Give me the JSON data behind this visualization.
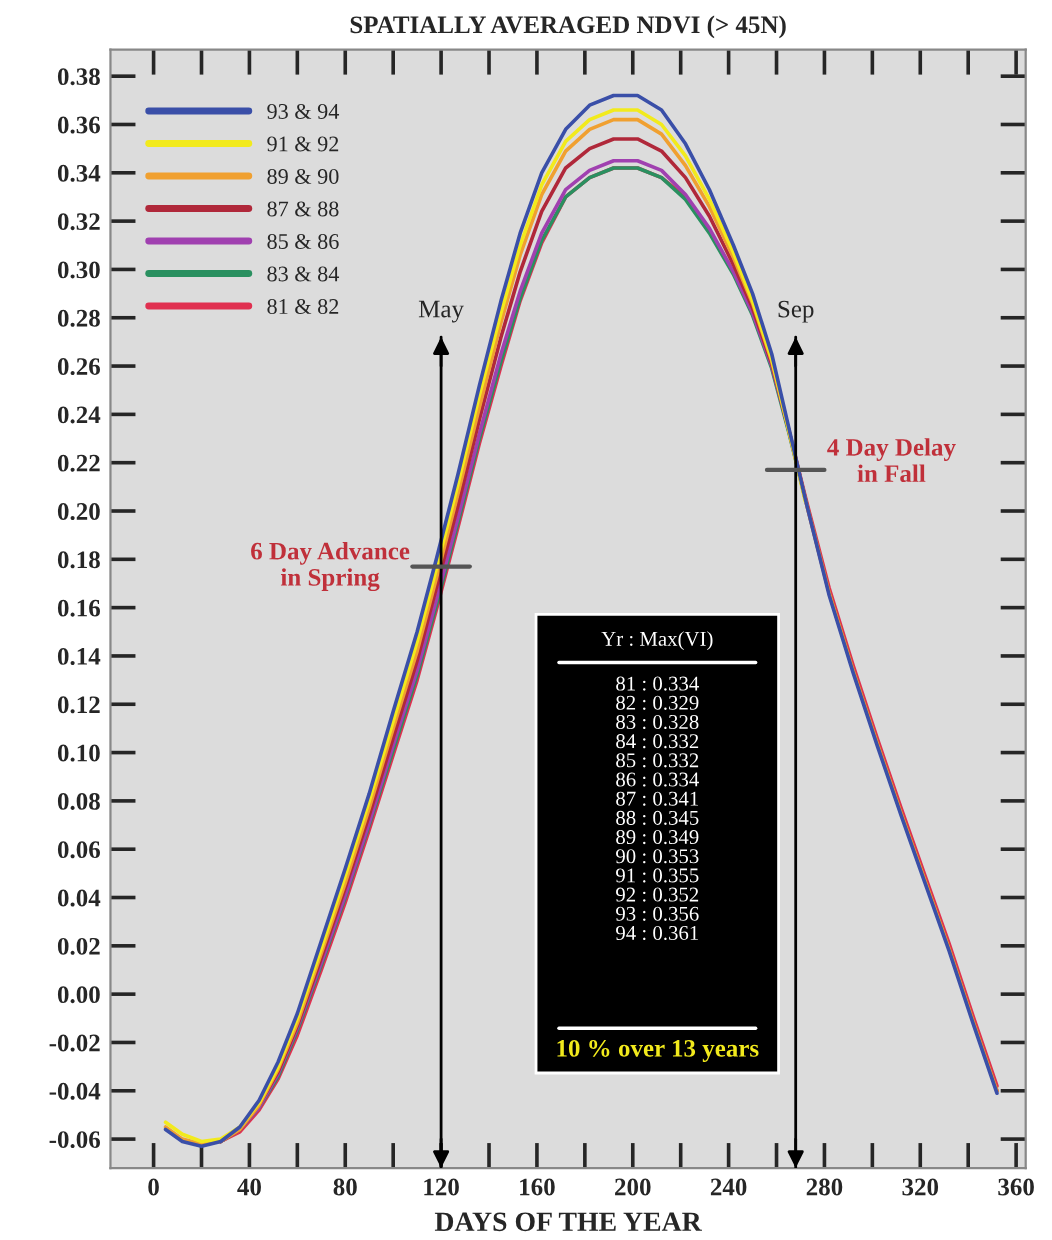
{
  "chart_data": {
    "type": "line",
    "title": "SPATIALLY AVERAGED NDVI (> 45N)",
    "xlabel": "DAYS OF THE YEAR",
    "x": [
      5,
      12,
      20,
      28,
      36,
      44,
      52,
      60,
      70,
      80,
      90,
      100,
      110,
      118,
      127,
      136,
      145,
      153,
      162,
      172,
      182,
      192,
      202,
      212,
      222,
      232,
      242,
      250,
      258,
      265,
      272,
      282,
      292,
      302,
      312,
      322,
      332,
      342,
      352
    ],
    "series": [
      {
        "name": "93 & 94",
        "color": "#3a4fa8",
        "values": [
          -0.056,
          -0.061,
          -0.063,
          -0.061,
          -0.055,
          -0.044,
          -0.028,
          -0.008,
          0.022,
          0.052,
          0.083,
          0.117,
          0.15,
          0.18,
          0.215,
          0.252,
          0.287,
          0.315,
          0.34,
          0.358,
          0.368,
          0.372,
          0.372,
          0.366,
          0.352,
          0.333,
          0.31,
          0.29,
          0.265,
          0.235,
          0.205,
          0.165,
          0.133,
          0.103,
          0.074,
          0.046,
          0.018,
          -0.012,
          -0.041
        ]
      },
      {
        "name": "91 & 92",
        "color": "#f2ea1c",
        "values": [
          -0.053,
          -0.058,
          -0.061,
          -0.06,
          -0.055,
          -0.045,
          -0.03,
          -0.01,
          0.019,
          0.049,
          0.08,
          0.113,
          0.146,
          0.176,
          0.211,
          0.248,
          0.282,
          0.31,
          0.335,
          0.353,
          0.362,
          0.366,
          0.366,
          0.36,
          0.347,
          0.329,
          0.307,
          0.287,
          0.263,
          0.234,
          0.204,
          null,
          null,
          null,
          null,
          null,
          null,
          null,
          null
        ]
      },
      {
        "name": "89 & 90",
        "color": "#f0a030",
        "values": [
          -0.055,
          -0.06,
          -0.062,
          -0.061,
          -0.056,
          -0.046,
          -0.031,
          -0.012,
          0.017,
          0.046,
          0.077,
          0.11,
          0.142,
          0.172,
          0.207,
          0.243,
          0.278,
          0.306,
          0.331,
          0.349,
          0.358,
          0.362,
          0.362,
          0.356,
          0.343,
          0.326,
          0.305,
          0.286,
          0.262,
          0.234,
          0.205,
          0.166,
          0.134,
          0.104,
          0.075,
          0.047,
          0.019,
          -0.011,
          -0.04
        ]
      },
      {
        "name": "87 & 88",
        "color": "#b0283a",
        "values": [
          null,
          null,
          null,
          -0.061,
          -0.056,
          -0.046,
          -0.032,
          -0.013,
          0.015,
          0.044,
          0.074,
          0.106,
          0.138,
          0.168,
          0.202,
          0.238,
          0.272,
          0.299,
          0.324,
          0.342,
          0.35,
          0.354,
          0.354,
          0.349,
          0.338,
          0.322,
          0.302,
          0.284,
          0.261,
          0.234,
          0.205,
          0.166,
          0.134,
          0.104,
          0.075,
          0.047,
          0.019,
          -0.011,
          -0.04
        ]
      },
      {
        "name": "85 & 86",
        "color": "#a040b0",
        "values": [
          null,
          null,
          null,
          -0.061,
          -0.056,
          -0.047,
          -0.033,
          -0.014,
          0.013,
          0.041,
          0.071,
          0.103,
          0.134,
          0.163,
          0.197,
          0.232,
          0.265,
          0.291,
          0.315,
          0.333,
          0.341,
          0.345,
          0.345,
          0.341,
          0.331,
          0.317,
          0.299,
          0.282,
          0.26,
          0.234,
          0.205,
          null,
          null,
          null,
          null,
          null,
          null,
          null,
          null
        ]
      },
      {
        "name": "83 & 84",
        "color": "#2a9060",
        "values": [
          null,
          null,
          null,
          -0.061,
          -0.056,
          -0.047,
          -0.034,
          -0.015,
          0.012,
          0.04,
          0.07,
          0.101,
          0.132,
          0.161,
          0.195,
          0.23,
          0.262,
          0.288,
          0.312,
          0.33,
          0.338,
          0.342,
          0.342,
          0.338,
          0.329,
          0.315,
          0.298,
          0.281,
          0.259,
          0.233,
          0.205,
          null,
          null,
          null,
          null,
          null,
          null,
          null,
          null
        ]
      },
      {
        "name": "81 & 82",
        "color": "#e03050",
        "values": [
          null,
          null,
          null,
          -0.061,
          -0.057,
          -0.048,
          -0.035,
          -0.017,
          0.01,
          0.038,
          0.068,
          0.099,
          0.13,
          0.159,
          0.193,
          0.228,
          0.26,
          0.287,
          0.311,
          0.33,
          0.338,
          0.342,
          0.342,
          0.338,
          0.33,
          0.316,
          0.299,
          0.282,
          0.26,
          0.234,
          0.206,
          0.168,
          0.136,
          0.106,
          0.077,
          0.049,
          0.021,
          -0.009,
          -0.038
        ]
      }
    ],
    "xlim": [
      -18,
      364
    ],
    "ylim": [
      -0.072,
      0.391
    ],
    "xticks": [
      0,
      {
        "value": 20,
        "label": null
      },
      40,
      {
        "value": 60,
        "label": null
      },
      80,
      {
        "value": 100,
        "label": null
      },
      120,
      {
        "value": 140,
        "label": null
      },
      160,
      {
        "value": 180,
        "label": null
      },
      200,
      {
        "value": 220,
        "label": null
      },
      240,
      {
        "value": 260,
        "label": null
      },
      280,
      {
        "value": 300,
        "label": null
      },
      320,
      {
        "value": 340,
        "label": null
      },
      360
    ],
    "yticks": [
      {
        "value": -0.06,
        "label": "-0.06"
      },
      {
        "value": -0.04,
        "label": "-0.04"
      },
      {
        "value": -0.02,
        "label": "-0.02"
      },
      {
        "value": 0,
        "label": "0.00"
      },
      {
        "value": 0.02,
        "label": "0.02"
      },
      {
        "value": 0.04,
        "label": "0.04"
      },
      {
        "value": 0.06,
        "label": "0.06"
      },
      {
        "value": 0.08,
        "label": "0.08"
      },
      {
        "value": 0.1,
        "label": "0.10"
      },
      {
        "value": 0.12,
        "label": "0.12"
      },
      {
        "value": 0.14,
        "label": "0.14"
      },
      {
        "value": 0.16,
        "label": "0.16"
      },
      {
        "value": 0.18,
        "label": "0.18"
      },
      {
        "value": 0.2,
        "label": "0.20"
      },
      {
        "value": 0.22,
        "label": "0.22"
      },
      {
        "value": 0.24,
        "label": "0.24"
      },
      {
        "value": 0.26,
        "label": "0.26"
      },
      {
        "value": 0.28,
        "label": "0.28"
      },
      {
        "value": 0.3,
        "label": "0.30"
      },
      {
        "value": 0.32,
        "label": "0.32"
      },
      {
        "value": 0.34,
        "label": "0.34"
      },
      {
        "value": 0.36,
        "label": "0.36"
      },
      {
        "value": 0.38,
        "label": "0.38"
      }
    ],
    "ref_lines": [
      {
        "axis": "x",
        "value": 120,
        "label": "May"
      },
      {
        "axis": "x",
        "value": 268,
        "label": "Sep"
      }
    ],
    "annotations": [
      {
        "text": "6 Day Advance\nin Spring",
        "x": 120,
        "y": 0.177
      },
      {
        "text": "4 Day Delay\nin Fall",
        "x": 268,
        "y": 0.217
      },
      "Yr : Max(VI)",
      "81 : 0.334\n82 : 0.329\n83 : 0.328\n84 : 0.332\n85 : 0.332\n86 : 0.334\n87 : 0.341\n88 : 0.345\n89 : 0.349\n90 : 0.353\n91 : 0.355\n92 : 0.352\n93 : 0.356\n94 : 0.361",
      "10 % over 13 years"
    ],
    "legend": "top left",
    "grid": false,
    "marker": "none",
    "line_style": "solid"
  }
}
